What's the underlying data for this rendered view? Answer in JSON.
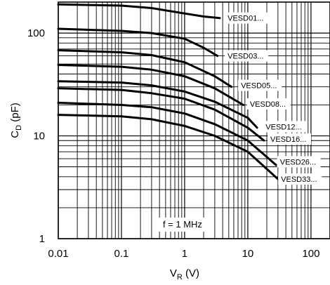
{
  "chart_data": {
    "type": "line",
    "title": "",
    "xlabel": {
      "main": "V",
      "sub": "R",
      "unit": " (V)"
    },
    "ylabel": {
      "main": "C",
      "sub": "D",
      "unit": " (pF)"
    },
    "x_scale": "log",
    "y_scale": "log",
    "xlim": [
      0.01,
      200
    ],
    "ylim": [
      1,
      200
    ],
    "x_ticks": [
      "0.01",
      "0.1",
      "1",
      "10",
      "100"
    ],
    "y_ticks": [
      "1",
      "10",
      "100"
    ],
    "grid": true,
    "annotation": "f = 1 MHz",
    "series": [
      {
        "name": "VESD01...",
        "x": [
          0.01,
          0.1,
          0.3,
          1,
          2,
          3.6
        ],
        "y": [
          190,
          185,
          175,
          155,
          145,
          140
        ]
      },
      {
        "name": "VESD03...",
        "x": [
          0.01,
          0.1,
          0.3,
          1,
          2,
          3.3
        ],
        "y": [
          110,
          105,
          100,
          88,
          72,
          60
        ]
      },
      {
        "name": "VESD05...",
        "x": [
          0.01,
          0.1,
          0.3,
          1,
          3,
          5.5
        ],
        "y": [
          68,
          65,
          61,
          52,
          38,
          30
        ]
      },
      {
        "name": "VESD08...",
        "x": [
          0.01,
          0.1,
          0.3,
          1,
          3,
          8.5
        ],
        "y": [
          49,
          47,
          44,
          38,
          29,
          20
        ]
      },
      {
        "name": "VESD12...",
        "x": [
          0.01,
          0.1,
          0.3,
          1,
          3,
          10,
          14
        ],
        "y": [
          34,
          33,
          31,
          27,
          21.5,
          15,
          12
        ]
      },
      {
        "name": "VESD16...",
        "x": [
          0.01,
          0.1,
          0.3,
          1,
          3,
          10,
          18
        ],
        "y": [
          29,
          28,
          26,
          23,
          18,
          12,
          9
        ]
      },
      {
        "name": "VESD26...",
        "x": [
          0.01,
          0.1,
          0.3,
          1,
          3,
          10,
          28
        ],
        "y": [
          21,
          20,
          19,
          16.5,
          13,
          9,
          5.2
        ]
      },
      {
        "name": "VESD33...",
        "x": [
          0.01,
          0.1,
          0.3,
          1,
          3,
          10,
          33
        ],
        "y": [
          16,
          15.5,
          14.5,
          12.5,
          10,
          7,
          3.6
        ]
      }
    ],
    "label_positions": [
      {
        "name": "VESD01...",
        "x": 4,
        "y": 140
      },
      {
        "name": "VESD03...",
        "x": 4,
        "y": 60
      },
      {
        "name": "VESD05...",
        "x": 6.5,
        "y": 31
      },
      {
        "name": "VESD08...",
        "x": 9,
        "y": 20.5
      },
      {
        "name": "VESD12...",
        "x": 16,
        "y": 12.3
      },
      {
        "name": "VESD16...",
        "x": 19,
        "y": 9.3
      },
      {
        "name": "VESD26...",
        "x": 27,
        "y": 5.6
      },
      {
        "name": "VESD33...",
        "x": 28,
        "y": 3.8
      }
    ]
  }
}
